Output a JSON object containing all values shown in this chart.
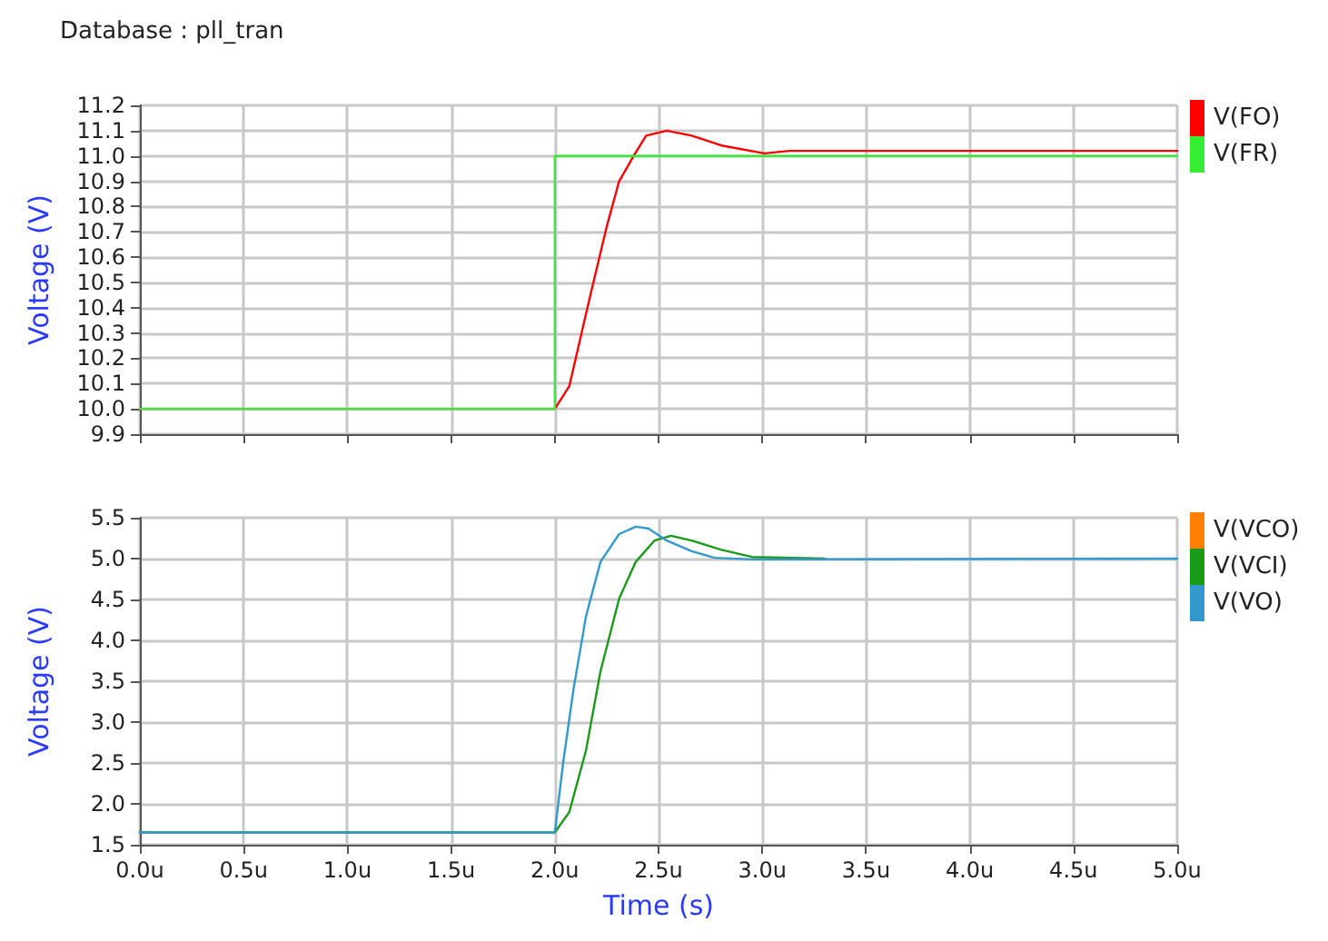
{
  "chart_data": [
    {
      "type": "line",
      "title": "Database : pll_tran",
      "ylabel": "Voltage (V)",
      "xlim": [
        0,
        5
      ],
      "xticks": [
        0,
        0.5,
        1,
        1.5,
        2,
        2.5,
        3,
        3.5,
        4,
        4.5,
        5
      ],
      "ylim": [
        9.9,
        11.2
      ],
      "yticks": [
        9.9,
        {
          "value": 10,
          "label": "10.0"
        },
        10.1,
        10.2,
        10.3,
        10.4,
        10.5,
        10.6,
        10.7,
        10.8,
        10.9,
        {
          "value": 11,
          "label": "11.0"
        },
        11.1,
        11.2
      ],
      "tick_labels": "y",
      "grid": true,
      "legend": "top right",
      "marker": "none",
      "line_style": "solid",
      "series": [
        {
          "name": "V(FO)",
          "color": "#ff0000",
          "x": [
            0,
            2,
            2.07,
            2.16,
            2.25,
            2.31,
            2.38,
            2.44,
            2.54,
            2.66,
            2.81,
            3.01,
            3.13,
            5
          ],
          "values": [
            10,
            10,
            10.09,
            10.41,
            10.72,
            10.9,
            11,
            11.08,
            11.1,
            11.08,
            11.04,
            11.01,
            11.02,
            11.02
          ]
        },
        {
          "name": "V(FR)",
          "color": "#33ee33",
          "x": [
            0,
            2,
            2,
            5
          ],
          "values": [
            10,
            10,
            11,
            11
          ]
        }
      ]
    },
    {
      "type": "line",
      "xlabel": "Time (s)",
      "ylabel": "Voltage (V)",
      "xlim": [
        0,
        5
      ],
      "xticks": [
        {
          "value": 0,
          "label": "0.0u"
        },
        {
          "value": 0.5,
          "label": "0.5u"
        },
        {
          "value": 1,
          "label": "1.0u"
        },
        {
          "value": 1.5,
          "label": "1.5u"
        },
        {
          "value": 2,
          "label": "2.0u"
        },
        {
          "value": 2.5,
          "label": "2.5u"
        },
        {
          "value": 3,
          "label": "3.0u"
        },
        {
          "value": 3.5,
          "label": "3.5u"
        },
        {
          "value": 4,
          "label": "4.0u"
        },
        {
          "value": 4.5,
          "label": "4.5u"
        },
        {
          "value": 5,
          "label": "5.0u"
        }
      ],
      "ylim": [
        1.5,
        5.5
      ],
      "yticks": [
        1.5,
        {
          "value": 2,
          "label": "2.0"
        },
        2.5,
        {
          "value": 3,
          "label": "3.0"
        },
        3.5,
        {
          "value": 4,
          "label": "4.0"
        },
        4.5,
        {
          "value": 5,
          "label": "5.0"
        },
        5.5
      ],
      "grid": true,
      "legend": "top right",
      "marker": "none",
      "line_style": "solid",
      "series": [
        {
          "name": "V(VCO)",
          "color": "#ff8000"
        },
        {
          "name": "V(VCI)",
          "color": "#1a9a1a",
          "x": [
            0,
            2,
            2.07,
            2.15,
            2.22,
            2.31,
            2.39,
            2.48,
            2.56,
            2.66,
            2.8,
            2.95,
            3.3
          ],
          "values": [
            1.65,
            1.65,
            1.9,
            2.65,
            3.62,
            4.51,
            4.96,
            5.22,
            5.28,
            5.22,
            5.11,
            5.02,
            5
          ]
        },
        {
          "name": "V(VO)",
          "color": "#3399cc",
          "x": [
            0,
            2,
            2.04,
            2.09,
            2.15,
            2.22,
            2.31,
            2.39,
            2.45,
            2.54,
            2.66,
            2.77,
            2.95,
            5
          ],
          "values": [
            1.65,
            1.65,
            2.5,
            3.4,
            4.29,
            4.96,
            5.3,
            5.39,
            5.37,
            5.22,
            5.09,
            5.01,
            4.99,
            5
          ]
        }
      ]
    }
  ]
}
